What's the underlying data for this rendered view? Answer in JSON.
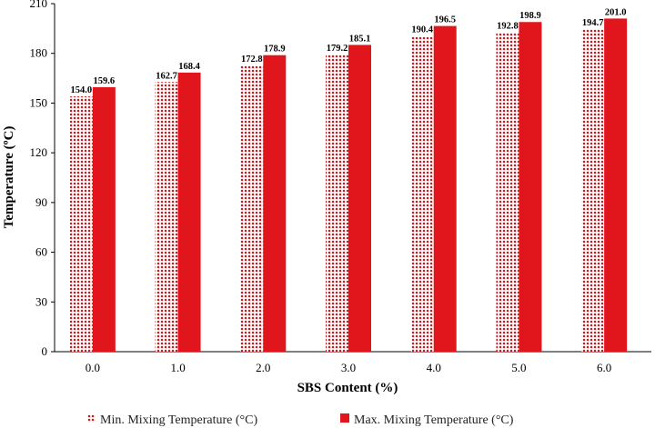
{
  "chart_data": {
    "type": "bar",
    "title": "",
    "xlabel": "SBS Content (%)",
    "ylabel": "Temperature (ºC)",
    "categories": [
      "0.0",
      "1.0",
      "2.0",
      "3.0",
      "4.0",
      "5.0",
      "6.0"
    ],
    "series": [
      {
        "name": "Min. Mixing Temperature (°C)",
        "values": [
          154.0,
          162.7,
          172.8,
          179.2,
          190.4,
          192.8,
          194.7
        ],
        "labels": [
          "154.0",
          "162.7",
          "172.8",
          "179.2",
          "190.4",
          "192.8",
          "194.7"
        ],
        "color": "#d9141a",
        "pattern": "dotted"
      },
      {
        "name": "Max. Mixing Temperature (°C)",
        "values": [
          159.6,
          168.4,
          178.9,
          185.1,
          196.5,
          198.9,
          201.0
        ],
        "labels": [
          "159.6",
          "168.4",
          "178.9",
          "185.1",
          "196.5",
          "198.9",
          "201.0"
        ],
        "color": "#e0161c",
        "pattern": "solid"
      }
    ],
    "yticks": [
      "0",
      "30",
      "60",
      "90",
      "120",
      "150",
      "180",
      "210"
    ],
    "ylim": [
      0,
      210
    ],
    "grid": false,
    "legend_position": "bottom"
  }
}
